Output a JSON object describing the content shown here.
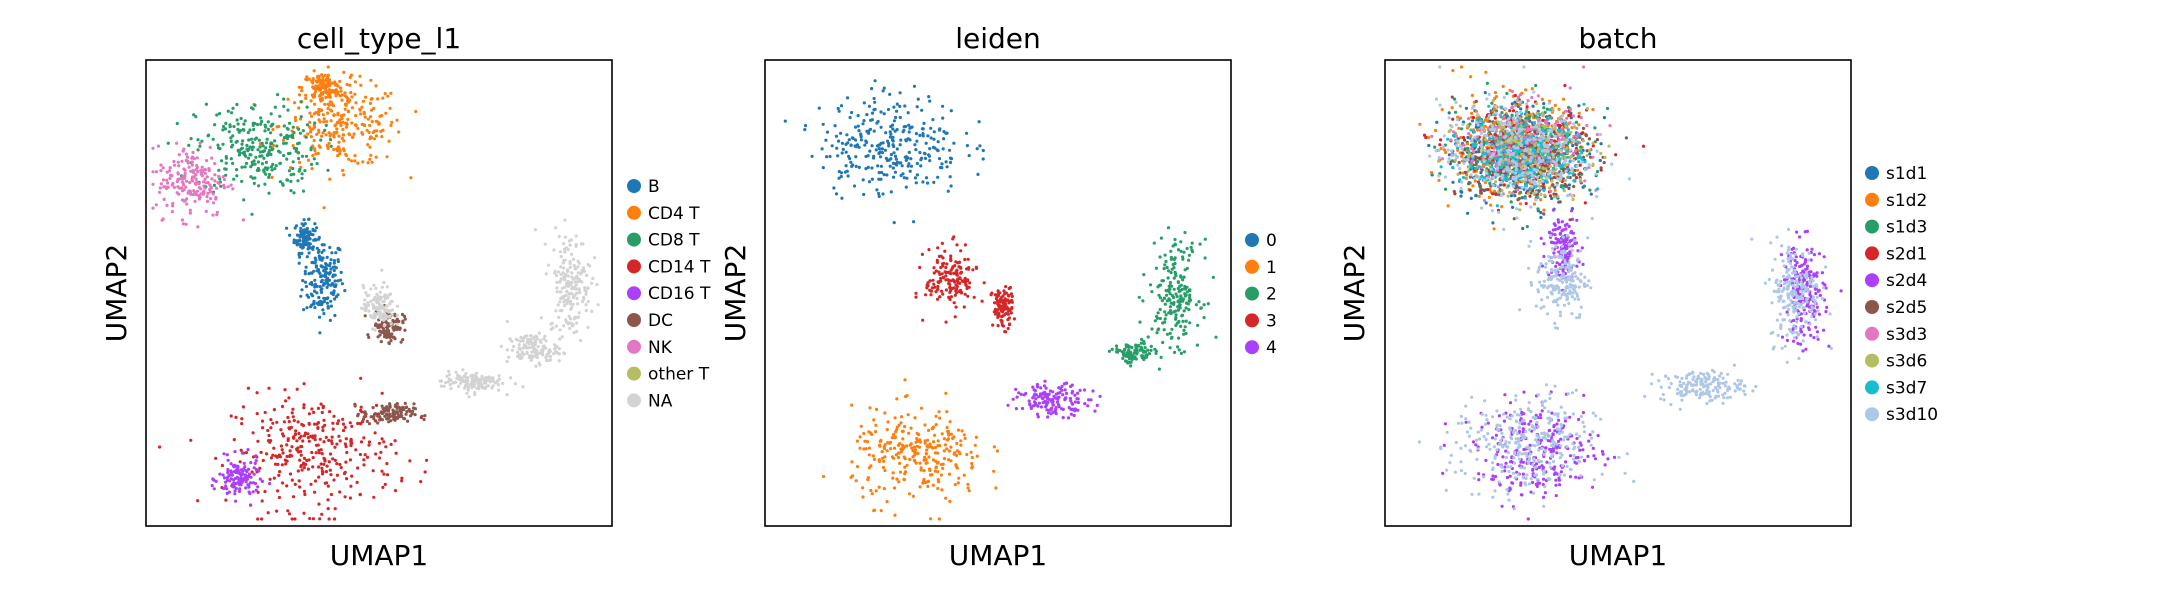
{
  "figure": {
    "panels": [
      {
        "title": "cell_type_l1",
        "xlabel": "UMAP1",
        "ylabel": "UMAP2",
        "legend_entries": [
          {
            "label": "B",
            "color": "#1f77b4"
          },
          {
            "label": "CD4 T",
            "color": "#ff7f0e"
          },
          {
            "label": "CD8 T",
            "color": "#279e68"
          },
          {
            "label": "CD14 T",
            "color": "#d62728"
          },
          {
            "label": "CD16 T",
            "color": "#aa40fc"
          },
          {
            "label": "DC",
            "color": "#8c564b"
          },
          {
            "label": "NK",
            "color": "#e377c2"
          },
          {
            "label": "other T",
            "color": "#b5bd61"
          },
          {
            "label": "NA",
            "color": "#d3d3d3"
          }
        ]
      },
      {
        "title": "leiden",
        "xlabel": "UMAP1",
        "ylabel": "UMAP2",
        "legend_entries": [
          {
            "label": "0",
            "color": "#1f77b4"
          },
          {
            "label": "1",
            "color": "#ff7f0e"
          },
          {
            "label": "2",
            "color": "#279e68"
          },
          {
            "label": "3",
            "color": "#d62728"
          },
          {
            "label": "4",
            "color": "#aa40fc"
          }
        ]
      },
      {
        "title": "batch",
        "xlabel": "UMAP1",
        "ylabel": "UMAP2",
        "legend_entries": [
          {
            "label": "s1d1",
            "color": "#1f77b4"
          },
          {
            "label": "s1d2",
            "color": "#ff7f0e"
          },
          {
            "label": "s1d3",
            "color": "#279e68"
          },
          {
            "label": "s2d1",
            "color": "#d62728"
          },
          {
            "label": "s2d4",
            "color": "#aa40fc"
          },
          {
            "label": "s2d5",
            "color": "#8c564b"
          },
          {
            "label": "s3d3",
            "color": "#e377c2"
          },
          {
            "label": "s3d6",
            "color": "#b5bd61"
          },
          {
            "label": "s3d7",
            "color": "#17becf"
          },
          {
            "label": "s3d10",
            "color": "#aec7e8"
          }
        ]
      }
    ]
  },
  "chart_data": [
    {
      "type": "scatter",
      "title": "cell_type_l1",
      "xlabel": "UMAP1",
      "ylabel": "UMAP2",
      "grid": false,
      "axis_ticks": false,
      "legend_placement": "right",
      "series": [
        {
          "name": "B",
          "color": "#1f77b4",
          "clusters": [
            {
              "x": 0.38,
              "y": 0.53,
              "spread": [
                0.04,
                0.08
              ]
            },
            {
              "x": 0.34,
              "y": 0.62,
              "spread": [
                0.02,
                0.03
              ]
            }
          ]
        },
        {
          "name": "CD4 T",
          "color": "#ff7f0e",
          "clusters": [
            {
              "x": 0.42,
              "y": 0.86,
              "spread": [
                0.12,
                0.08
              ]
            },
            {
              "x": 0.38,
              "y": 0.94,
              "spread": [
                0.04,
                0.03
              ]
            }
          ]
        },
        {
          "name": "CD8 T",
          "color": "#279e68",
          "clusters": [
            {
              "x": 0.24,
              "y": 0.81,
              "spread": [
                0.12,
                0.09
              ]
            }
          ]
        },
        {
          "name": "CD14 T",
          "color": "#d62728",
          "clusters": [
            {
              "x": 0.36,
              "y": 0.16,
              "spread": [
                0.16,
                0.11
              ]
            }
          ]
        },
        {
          "name": "CD16 T",
          "color": "#aa40fc",
          "clusters": [
            {
              "x": 0.2,
              "y": 0.1,
              "spread": [
                0.04,
                0.04
              ]
            }
          ]
        },
        {
          "name": "DC",
          "color": "#8c564b",
          "clusters": [
            {
              "x": 0.52,
              "y": 0.43,
              "spread": [
                0.03,
                0.03
              ]
            },
            {
              "x": 0.52,
              "y": 0.24,
              "spread": [
                0.05,
                0.02
              ]
            }
          ]
        },
        {
          "name": "NK",
          "color": "#e377c2",
          "clusters": [
            {
              "x": 0.1,
              "y": 0.74,
              "spread": [
                0.07,
                0.07
              ]
            }
          ]
        },
        {
          "name": "other T",
          "color": "#b5bd61",
          "clusters": []
        },
        {
          "name": "NA",
          "color": "#d3d3d3",
          "clusters": [
            {
              "x": 0.91,
              "y": 0.52,
              "spread": [
                0.04,
                0.1
              ]
            },
            {
              "x": 0.83,
              "y": 0.38,
              "spread": [
                0.05,
                0.03
              ]
            },
            {
              "x": 0.7,
              "y": 0.31,
              "spread": [
                0.06,
                0.02
              ]
            },
            {
              "x": 0.5,
              "y": 0.47,
              "spread": [
                0.03,
                0.04
              ]
            }
          ]
        }
      ]
    },
    {
      "type": "scatter",
      "title": "leiden",
      "xlabel": "UMAP1",
      "ylabel": "UMAP2",
      "grid": false,
      "axis_ticks": false,
      "legend_placement": "right",
      "series": [
        {
          "name": "0",
          "color": "#1f77b4",
          "clusters": [
            {
              "x": 0.27,
              "y": 0.82,
              "spread": [
                0.14,
                0.1
              ]
            }
          ]
        },
        {
          "name": "1",
          "color": "#ff7f0e",
          "clusters": [
            {
              "x": 0.33,
              "y": 0.15,
              "spread": [
                0.13,
                0.09
              ]
            }
          ]
        },
        {
          "name": "2",
          "color": "#279e68",
          "clusters": [
            {
              "x": 0.88,
              "y": 0.5,
              "spread": [
                0.05,
                0.1
              ]
            },
            {
              "x": 0.79,
              "y": 0.37,
              "spread": [
                0.04,
                0.02
              ]
            }
          ]
        },
        {
          "name": "3",
          "color": "#d62728",
          "clusters": [
            {
              "x": 0.4,
              "y": 0.53,
              "spread": [
                0.05,
                0.06
              ]
            },
            {
              "x": 0.51,
              "y": 0.47,
              "spread": [
                0.02,
                0.04
              ]
            }
          ]
        },
        {
          "name": "4",
          "color": "#aa40fc",
          "clusters": [
            {
              "x": 0.62,
              "y": 0.27,
              "spread": [
                0.07,
                0.03
              ]
            }
          ]
        }
      ]
    },
    {
      "type": "scatter",
      "title": "batch",
      "xlabel": "UMAP1",
      "ylabel": "UMAP2",
      "grid": false,
      "axis_ticks": false,
      "legend_placement": "right",
      "series": [
        {
          "name": "s1d1",
          "color": "#1f77b4",
          "clusters": [
            {
              "x": 0.28,
              "y": 0.8,
              "spread": [
                0.14,
                0.1
              ]
            }
          ]
        },
        {
          "name": "s1d2",
          "color": "#ff7f0e",
          "clusters": [
            {
              "x": 0.26,
              "y": 0.82,
              "spread": [
                0.14,
                0.1
              ]
            }
          ]
        },
        {
          "name": "s1d3",
          "color": "#279e68",
          "clusters": [
            {
              "x": 0.3,
              "y": 0.81,
              "spread": [
                0.13,
                0.09
              ]
            }
          ]
        },
        {
          "name": "s2d1",
          "color": "#d62728",
          "clusters": [
            {
              "x": 0.3,
              "y": 0.8,
              "spread": [
                0.13,
                0.08
              ]
            }
          ]
        },
        {
          "name": "s2d4",
          "color": "#aa40fc",
          "clusters": [
            {
              "x": 0.9,
              "y": 0.5,
              "spread": [
                0.04,
                0.1
              ]
            },
            {
              "x": 0.33,
              "y": 0.16,
              "spread": [
                0.12,
                0.09
              ]
            },
            {
              "x": 0.38,
              "y": 0.6,
              "spread": [
                0.03,
                0.06
              ]
            }
          ]
        },
        {
          "name": "s2d5",
          "color": "#8c564b",
          "clusters": [
            {
              "x": 0.3,
              "y": 0.78,
              "spread": [
                0.12,
                0.08
              ]
            }
          ]
        },
        {
          "name": "s3d3",
          "color": "#e377c2",
          "clusters": [
            {
              "x": 0.3,
              "y": 0.82,
              "spread": [
                0.12,
                0.08
              ]
            }
          ]
        },
        {
          "name": "s3d6",
          "color": "#b5bd61",
          "clusters": [
            {
              "x": 0.3,
              "y": 0.8,
              "spread": [
                0.12,
                0.08
              ]
            }
          ]
        },
        {
          "name": "s3d7",
          "color": "#17becf",
          "clusters": [
            {
              "x": 0.3,
              "y": 0.8,
              "spread": [
                0.12,
                0.08
              ]
            }
          ]
        },
        {
          "name": "s3d10",
          "color": "#aec7e8",
          "clusters": [
            {
              "x": 0.3,
              "y": 0.17,
              "spread": [
                0.14,
                0.1
              ]
            },
            {
              "x": 0.38,
              "y": 0.53,
              "spread": [
                0.05,
                0.08
              ]
            },
            {
              "x": 0.88,
              "y": 0.5,
              "spread": [
                0.05,
                0.1
              ]
            },
            {
              "x": 0.68,
              "y": 0.3,
              "spread": [
                0.08,
                0.03
              ]
            },
            {
              "x": 0.27,
              "y": 0.8,
              "spread": [
                0.14,
                0.1
              ]
            }
          ]
        }
      ]
    }
  ]
}
